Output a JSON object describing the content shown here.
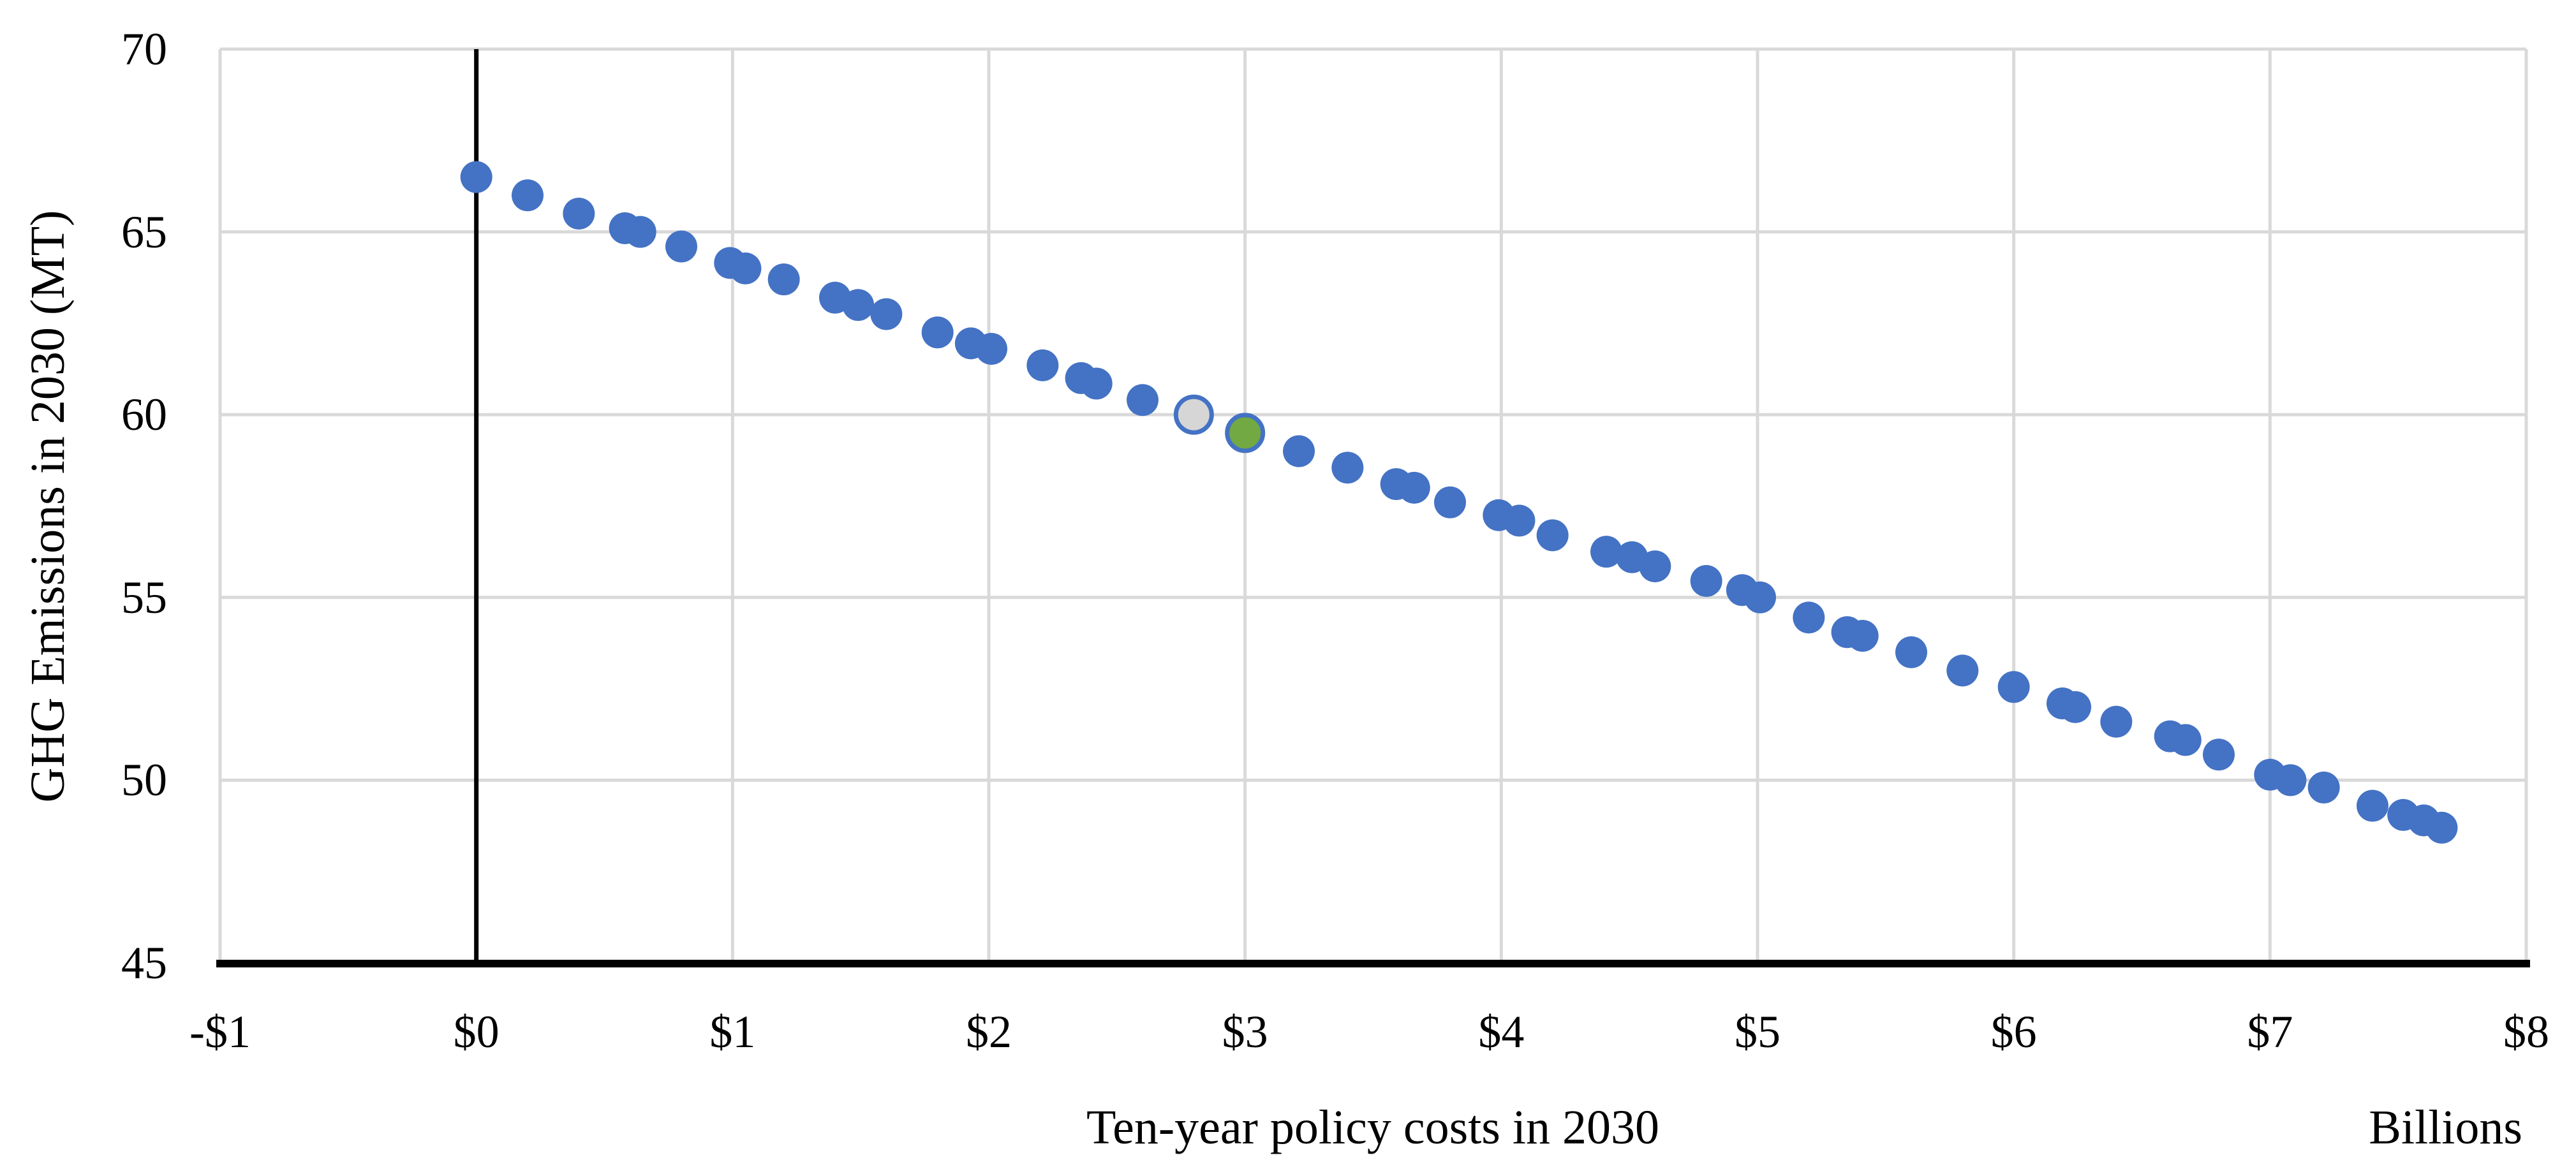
{
  "chart_data": {
    "type": "scatter",
    "title": "",
    "xlabel": "Ten-year policy costs in 2030",
    "xlabel_units": "Billions",
    "ylabel": "GHG Emissions in 2030 (MT)",
    "xlim": [
      -1,
      8
    ],
    "ylim": [
      45,
      70
    ],
    "grid": true,
    "legend": false,
    "zero_line_x": 0,
    "x_ticks": [
      {
        "value": -1,
        "label": "-$1"
      },
      {
        "value": 0,
        "label": "$0"
      },
      {
        "value": 1,
        "label": "$1"
      },
      {
        "value": 2,
        "label": "$2"
      },
      {
        "value": 3,
        "label": "$3"
      },
      {
        "value": 4,
        "label": "$4"
      },
      {
        "value": 5,
        "label": "$5"
      },
      {
        "value": 6,
        "label": "$6"
      },
      {
        "value": 7,
        "label": "$7"
      },
      {
        "value": 8,
        "label": "$8"
      }
    ],
    "y_ticks": [
      {
        "value": 45,
        "label": "45"
      },
      {
        "value": 50,
        "label": "50"
      },
      {
        "value": 55,
        "label": "55"
      },
      {
        "value": 60,
        "label": "60"
      },
      {
        "value": 65,
        "label": "65"
      },
      {
        "value": 70,
        "label": "70"
      }
    ],
    "colors": {
      "marker_blue": "#4472C4",
      "highlight_gray_fill": "#D6D6D6",
      "highlight_green_fill": "#73A942",
      "highlight_ring": "#4472C4",
      "gridline": "#D9D9D9",
      "axis": "#000000"
    },
    "series": [
      {
        "name": "policy-scenarios",
        "marker": "circle",
        "fill": "#4472C4",
        "stroke": "none",
        "points": [
          [
            0.0,
            66.5
          ],
          [
            0.2,
            66.0
          ],
          [
            0.4,
            65.5
          ],
          [
            0.58,
            65.1
          ],
          [
            0.64,
            65.0
          ],
          [
            0.8,
            64.6
          ],
          [
            0.99,
            64.15
          ],
          [
            1.05,
            64.0
          ],
          [
            1.2,
            63.7
          ],
          [
            1.4,
            63.2
          ],
          [
            1.49,
            63.0
          ],
          [
            1.6,
            62.75
          ],
          [
            1.8,
            62.25
          ],
          [
            1.93,
            61.95
          ],
          [
            2.01,
            61.8
          ],
          [
            2.21,
            61.35
          ],
          [
            2.36,
            61.0
          ],
          [
            2.42,
            60.85
          ],
          [
            2.6,
            60.4
          ],
          [
            3.21,
            59.0
          ],
          [
            3.4,
            58.55
          ],
          [
            3.59,
            58.1
          ],
          [
            3.66,
            58.0
          ],
          [
            3.8,
            57.6
          ],
          [
            3.99,
            57.25
          ],
          [
            4.07,
            57.1
          ],
          [
            4.2,
            56.7
          ],
          [
            4.41,
            56.25
          ],
          [
            4.51,
            56.1
          ],
          [
            4.6,
            55.85
          ],
          [
            4.8,
            55.45
          ],
          [
            4.94,
            55.2
          ],
          [
            5.01,
            55.0
          ],
          [
            5.2,
            54.45
          ],
          [
            5.35,
            54.05
          ],
          [
            5.41,
            53.95
          ],
          [
            5.6,
            53.5
          ],
          [
            5.8,
            53.0
          ],
          [
            6.0,
            52.55
          ],
          [
            6.19,
            52.1
          ],
          [
            6.24,
            52.0
          ],
          [
            6.4,
            51.6
          ],
          [
            6.61,
            51.2
          ],
          [
            6.67,
            51.1
          ],
          [
            6.8,
            50.7
          ],
          [
            7.0,
            50.15
          ],
          [
            7.08,
            50.0
          ],
          [
            7.21,
            49.8
          ],
          [
            7.4,
            49.3
          ],
          [
            7.52,
            49.05
          ],
          [
            7.6,
            48.9
          ],
          [
            7.67,
            48.7
          ]
        ]
      },
      {
        "name": "highlighted-scenario-gray",
        "marker": "circle-ring",
        "fill": "#D6D6D6",
        "stroke": "#4472C4",
        "points": [
          [
            2.8,
            60.0
          ]
        ]
      },
      {
        "name": "highlighted-scenario-green",
        "marker": "circle-ring",
        "fill": "#73A942",
        "stroke": "#4472C4",
        "points": [
          [
            3.0,
            59.5
          ]
        ]
      }
    ]
  }
}
